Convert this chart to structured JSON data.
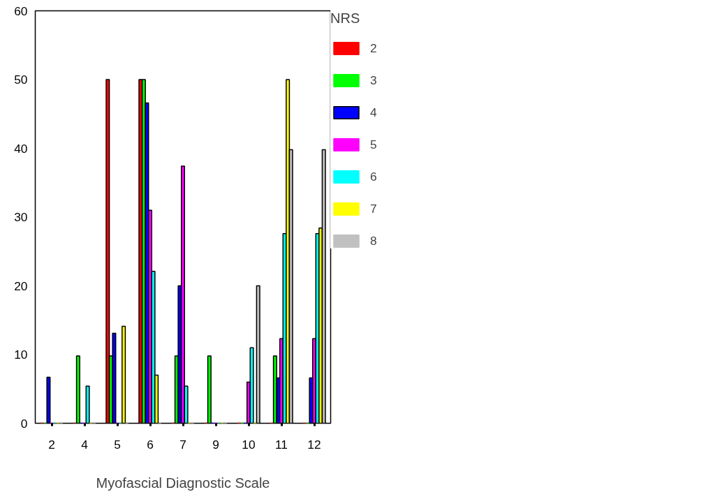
{
  "chart_data": {
    "type": "bar",
    "xlabel": "Myofascial Diagnostic Scale",
    "legend_title": "NRS",
    "legend": "right",
    "grid": false,
    "categories": [
      "2",
      "4",
      "5",
      "6",
      "7",
      "9",
      "10",
      "11",
      "12"
    ],
    "ylim": [
      0,
      60
    ],
    "yticks": [
      0,
      10,
      20,
      30,
      40,
      50,
      60
    ],
    "series": [
      {
        "name": "2",
        "color": "#ff0000",
        "values": [
          0,
          0,
          50,
          50,
          0,
          0,
          0,
          0,
          0
        ]
      },
      {
        "name": "3",
        "color": "#00ff00",
        "values": [
          0,
          9.8,
          9.8,
          50,
          9.8,
          9.8,
          0,
          9.8,
          0
        ]
      },
      {
        "name": "4",
        "color": "#0000ff",
        "values": [
          6.7,
          0,
          13.1,
          46.6,
          20,
          0,
          0,
          6.6,
          6.6
        ]
      },
      {
        "name": "5",
        "color": "#ff00ff",
        "values": [
          0,
          0,
          0,
          31,
          37.4,
          0,
          6,
          12.3,
          12.3
        ]
      },
      {
        "name": "6",
        "color": "#00ffff",
        "values": [
          0,
          5.4,
          0,
          22.1,
          5.4,
          0,
          11,
          27.6,
          27.6
        ]
      },
      {
        "name": "7",
        "color": "#ffff00",
        "values": [
          0,
          0,
          14.1,
          7,
          0,
          0,
          0,
          50,
          28.4
        ]
      },
      {
        "name": "8",
        "color": "#c0c0c0",
        "values": [
          0,
          0,
          0,
          0,
          0,
          0,
          20,
          39.8,
          39.8
        ]
      }
    ]
  }
}
